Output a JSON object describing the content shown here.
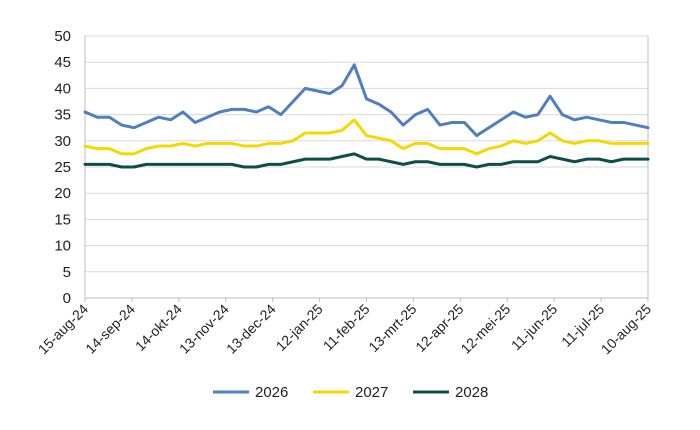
{
  "chart_data": {
    "type": "line",
    "title": "",
    "xlabel": "",
    "ylabel": "",
    "ylim": [
      0,
      50
    ],
    "yticks": [
      0,
      5,
      10,
      15,
      20,
      25,
      30,
      35,
      40,
      45,
      50
    ],
    "x_tick_labels": [
      "15-aug-24",
      "14-sep-24",
      "14-okt-24",
      "13-nov-24",
      "13-dec-24",
      "12-jan-25",
      "11-feb-25",
      "13-mrt-25",
      "12-apr-25",
      "12-mei-25",
      "11-jun-25",
      "11-jul-25",
      "10-aug-25"
    ],
    "grid": "horizontal",
    "legend_position": "bottom",
    "series": [
      {
        "name": "2026",
        "color": "#4f7fbf",
        "values": [
          35.5,
          34.5,
          34.5,
          33.0,
          32.5,
          33.5,
          34.5,
          34.0,
          35.5,
          33.5,
          34.5,
          35.5,
          36.0,
          36.0,
          35.5,
          36.5,
          35.0,
          37.5,
          40.0,
          39.5,
          39.0,
          40.5,
          44.5,
          38.0,
          37.0,
          35.5,
          33.0,
          35.0,
          36.0,
          33.0,
          33.5,
          33.5,
          31.0,
          32.5,
          34.0,
          35.5,
          34.5,
          35.0,
          38.5,
          35.0,
          34.0,
          34.5,
          34.0,
          33.5,
          33.5,
          33.0,
          32.5
        ]
      },
      {
        "name": "2027",
        "color": "#f5d800",
        "values": [
          29.0,
          28.5,
          28.5,
          27.5,
          27.5,
          28.5,
          29.0,
          29.0,
          29.5,
          29.0,
          29.5,
          29.5,
          29.5,
          29.0,
          29.0,
          29.5,
          29.5,
          30.0,
          31.5,
          31.5,
          31.5,
          32.0,
          34.0,
          31.0,
          30.5,
          30.0,
          28.5,
          29.5,
          29.5,
          28.5,
          28.5,
          28.5,
          27.5,
          28.5,
          29.0,
          30.0,
          29.5,
          30.0,
          31.5,
          30.0,
          29.5,
          30.0,
          30.0,
          29.5,
          29.5,
          29.5,
          29.5
        ]
      },
      {
        "name": "2028",
        "color": "#0b4f47",
        "values": [
          25.5,
          25.5,
          25.5,
          25.0,
          25.0,
          25.5,
          25.5,
          25.5,
          25.5,
          25.5,
          25.5,
          25.5,
          25.5,
          25.0,
          25.0,
          25.5,
          25.5,
          26.0,
          26.5,
          26.5,
          26.5,
          27.0,
          27.5,
          26.5,
          26.5,
          26.0,
          25.5,
          26.0,
          26.0,
          25.5,
          25.5,
          25.5,
          25.0,
          25.5,
          25.5,
          26.0,
          26.0,
          26.0,
          27.0,
          26.5,
          26.0,
          26.5,
          26.5,
          26.0,
          26.5,
          26.5,
          26.5
        ]
      }
    ]
  }
}
